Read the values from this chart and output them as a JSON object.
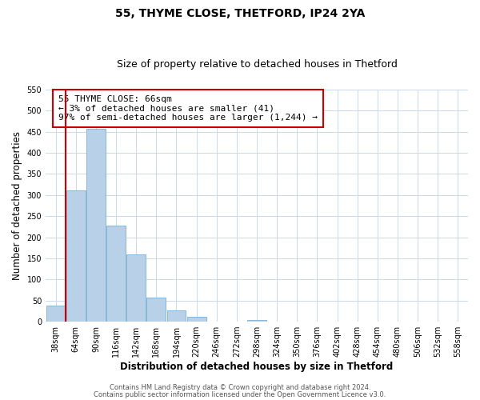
{
  "title": "55, THYME CLOSE, THETFORD, IP24 2YA",
  "subtitle": "Size of property relative to detached houses in Thetford",
  "xlabel": "Distribution of detached houses by size in Thetford",
  "ylabel": "Number of detached properties",
  "bar_labels": [
    "38sqm",
    "64sqm",
    "90sqm",
    "116sqm",
    "142sqm",
    "168sqm",
    "194sqm",
    "220sqm",
    "246sqm",
    "272sqm",
    "298sqm",
    "324sqm",
    "350sqm",
    "376sqm",
    "402sqm",
    "428sqm",
    "454sqm",
    "480sqm",
    "506sqm",
    "532sqm",
    "558sqm"
  ],
  "bar_values": [
    38,
    311,
    457,
    228,
    160,
    57,
    26,
    11,
    0,
    0,
    3,
    1,
    0,
    0,
    0,
    0,
    0,
    0,
    0,
    0,
    1
  ],
  "bar_color": "#b8d0e8",
  "bar_edge_color": "#7aafd4",
  "vline_color": "#cc0000",
  "ylim": [
    0,
    550
  ],
  "yticks": [
    0,
    50,
    100,
    150,
    200,
    250,
    300,
    350,
    400,
    450,
    500,
    550
  ],
  "annotation_line1": "55 THYME CLOSE: 66sqm",
  "annotation_line2": "← 3% of detached houses are smaller (41)",
  "annotation_line3": "97% of semi-detached houses are larger (1,244) →",
  "annotation_box_color": "#ffffff",
  "annotation_box_edge_color": "#cc0000",
  "footer_line1": "Contains HM Land Registry data © Crown copyright and database right 2024.",
  "footer_line2": "Contains public sector information licensed under the Open Government Licence v3.0.",
  "background_color": "#ffffff",
  "grid_color": "#ccd9e8",
  "title_fontsize": 10,
  "subtitle_fontsize": 9,
  "tick_label_fontsize": 7,
  "axis_label_fontsize": 8.5,
  "annotation_fontsize": 8,
  "footer_fontsize": 6
}
